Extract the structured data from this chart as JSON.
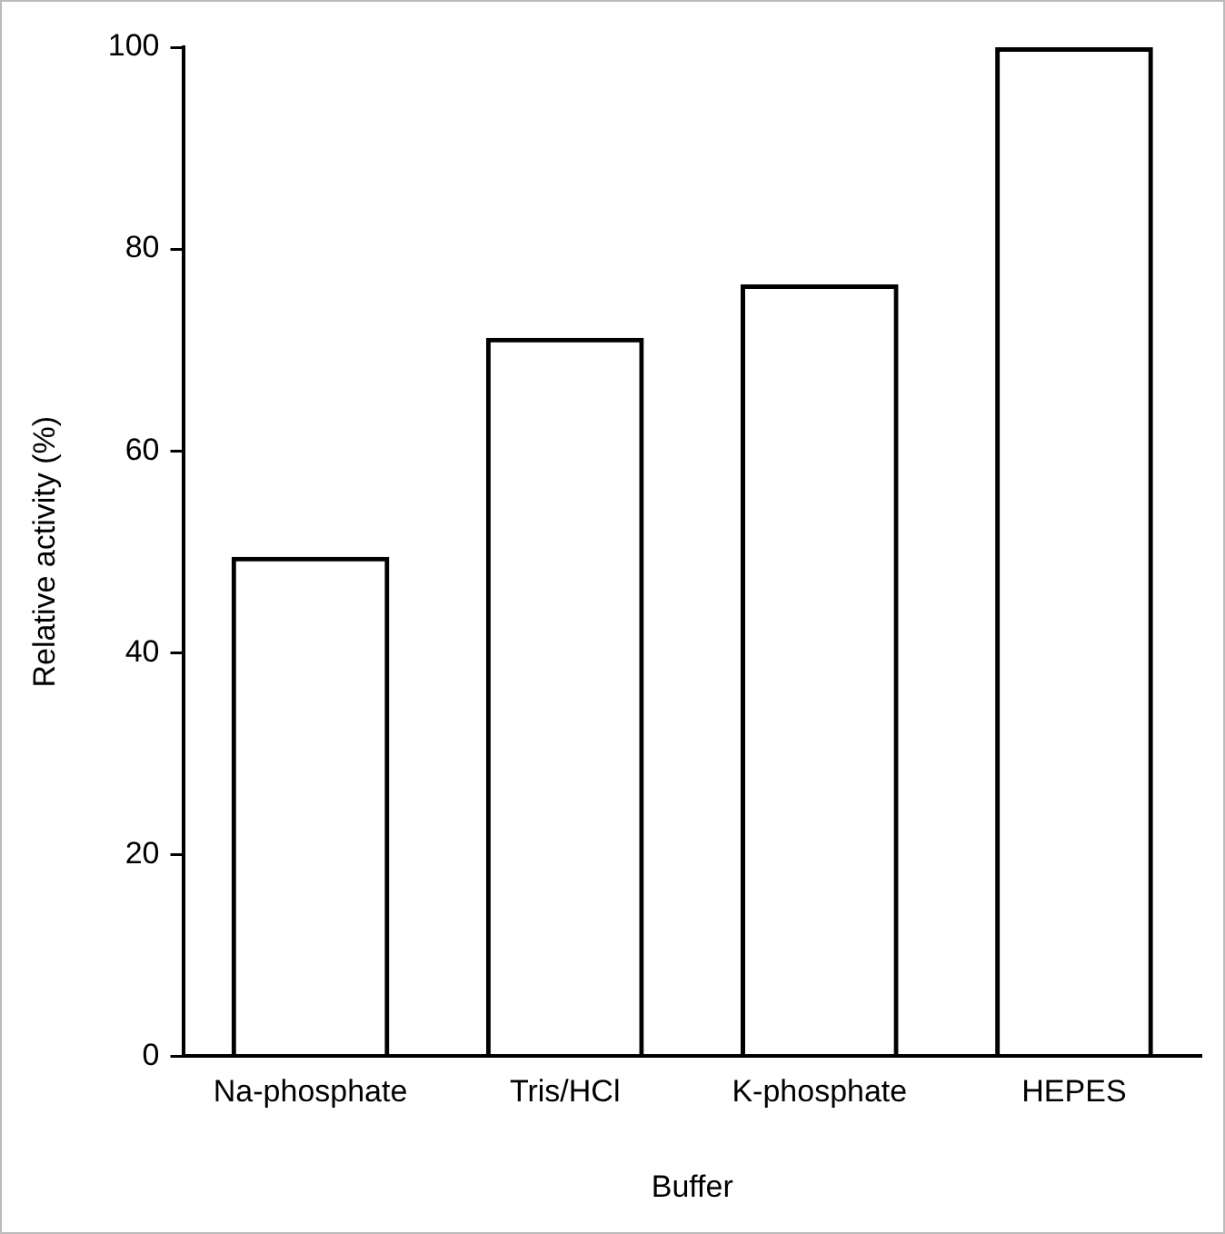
{
  "chart_data": {
    "type": "bar",
    "xlabel": "Buffer",
    "ylabel": "Relative activity (%)",
    "categories": [
      "Na-phosphate",
      "Tris/HCl",
      "K-phosphate",
      "HEPES"
    ],
    "values": [
      49.5,
      71.2,
      76.5,
      100
    ],
    "color": "#000000",
    "ylim": [
      0,
      100
    ],
    "yticks": [
      0,
      20,
      40,
      60,
      80,
      100
    ],
    "grid": false,
    "legend": false
  }
}
